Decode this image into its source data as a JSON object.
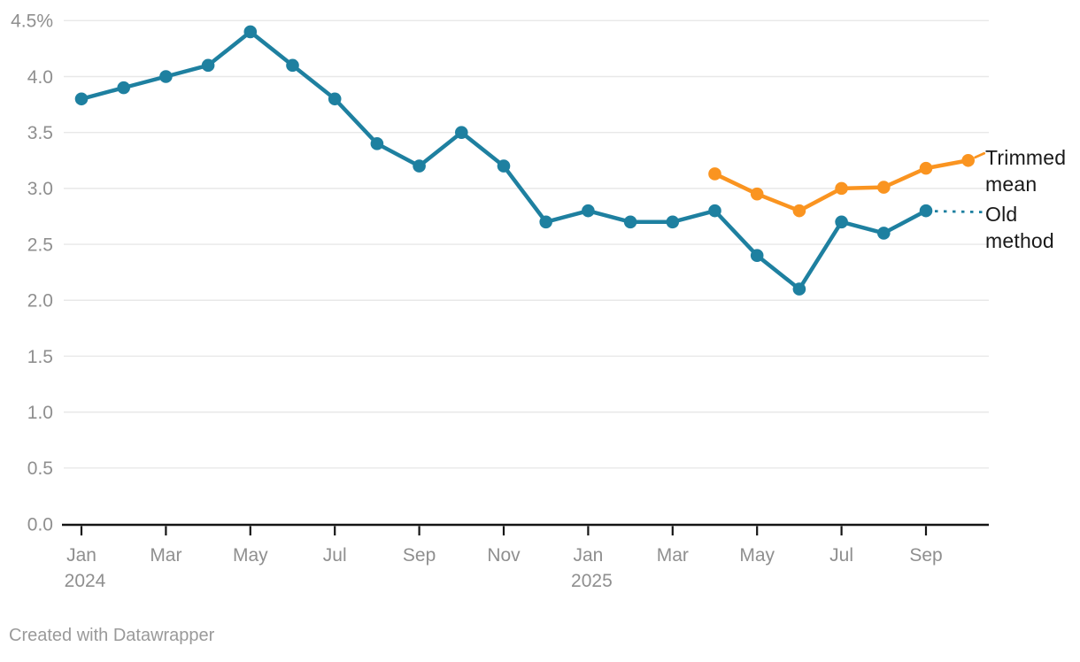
{
  "footer": {
    "credit": "Created with Datawrapper"
  },
  "legend": {
    "trimmed_mean_label": "Trimmed mean",
    "old_method_label": "Old method"
  },
  "colors": {
    "background": "#ffffff",
    "grid": "#e8e8e8",
    "axis": "#151515",
    "tick_label": "#8f8f8f",
    "legend_text": "#1a1a1a",
    "credit_text": "#9a9a9a",
    "teal": "#1e80a0",
    "orange": "#fa9420"
  },
  "chart_data": {
    "type": "line",
    "title": "",
    "xlabel": "",
    "ylabel": "",
    "unit": "%",
    "grid": true,
    "legend_position": "right-of-line-ends",
    "ylim": [
      0,
      4.5
    ],
    "x_categories": [
      "Jan 2024",
      "Feb 2024",
      "Mar 2024",
      "Apr 2024",
      "May 2024",
      "Jun 2024",
      "Jul 2024",
      "Aug 2024",
      "Sep 2024",
      "Oct 2024",
      "Nov 2024",
      "Dec 2024",
      "Jan 2025",
      "Feb 2025",
      "Mar 2025",
      "Apr 2025",
      "May 2025",
      "Jun 2025",
      "Jul 2025",
      "Aug 2025",
      "Sep 2025",
      "Oct 2025"
    ],
    "yticks": [
      {
        "v": 0.0,
        "label": "0.0"
      },
      {
        "v": 0.5,
        "label": "0.5"
      },
      {
        "v": 1.0,
        "label": "1.0"
      },
      {
        "v": 1.5,
        "label": "1.5"
      },
      {
        "v": 2.0,
        "label": "2.0"
      },
      {
        "v": 2.5,
        "label": "2.5"
      },
      {
        "v": 3.0,
        "label": "3.0"
      },
      {
        "v": 3.5,
        "label": "3.5"
      },
      {
        "v": 4.0,
        "label": "4.0"
      },
      {
        "v": 4.5,
        "label": "4.5%"
      }
    ],
    "x_ticks": [
      {
        "index": 0,
        "label": "Jan",
        "year": "2024"
      },
      {
        "index": 2,
        "label": "Mar"
      },
      {
        "index": 4,
        "label": "May"
      },
      {
        "index": 6,
        "label": "Jul"
      },
      {
        "index": 8,
        "label": "Sep"
      },
      {
        "index": 10,
        "label": "Nov"
      },
      {
        "index": 12,
        "label": "Jan",
        "year": "2025"
      },
      {
        "index": 14,
        "label": "Mar"
      },
      {
        "index": 16,
        "label": "May"
      },
      {
        "index": 18,
        "label": "Jul"
      },
      {
        "index": 20,
        "label": "Sep"
      }
    ],
    "series": [
      {
        "name": "Old method",
        "color": "#1e80a0",
        "start_index": 0,
        "label_connector": "dotted",
        "values": [
          3.8,
          3.9,
          4.0,
          4.1,
          4.4,
          4.1,
          3.8,
          3.4,
          3.2,
          3.5,
          3.2,
          2.7,
          2.8,
          2.7,
          2.7,
          2.8,
          2.4,
          2.1,
          2.7,
          2.6,
          2.8
        ]
      },
      {
        "name": "Trimmed mean",
        "color": "#fa9420",
        "start_index": 15,
        "label_connector": "dash",
        "values": [
          3.13,
          2.95,
          2.8,
          3.0,
          3.01,
          3.18,
          3.25
        ]
      }
    ]
  }
}
